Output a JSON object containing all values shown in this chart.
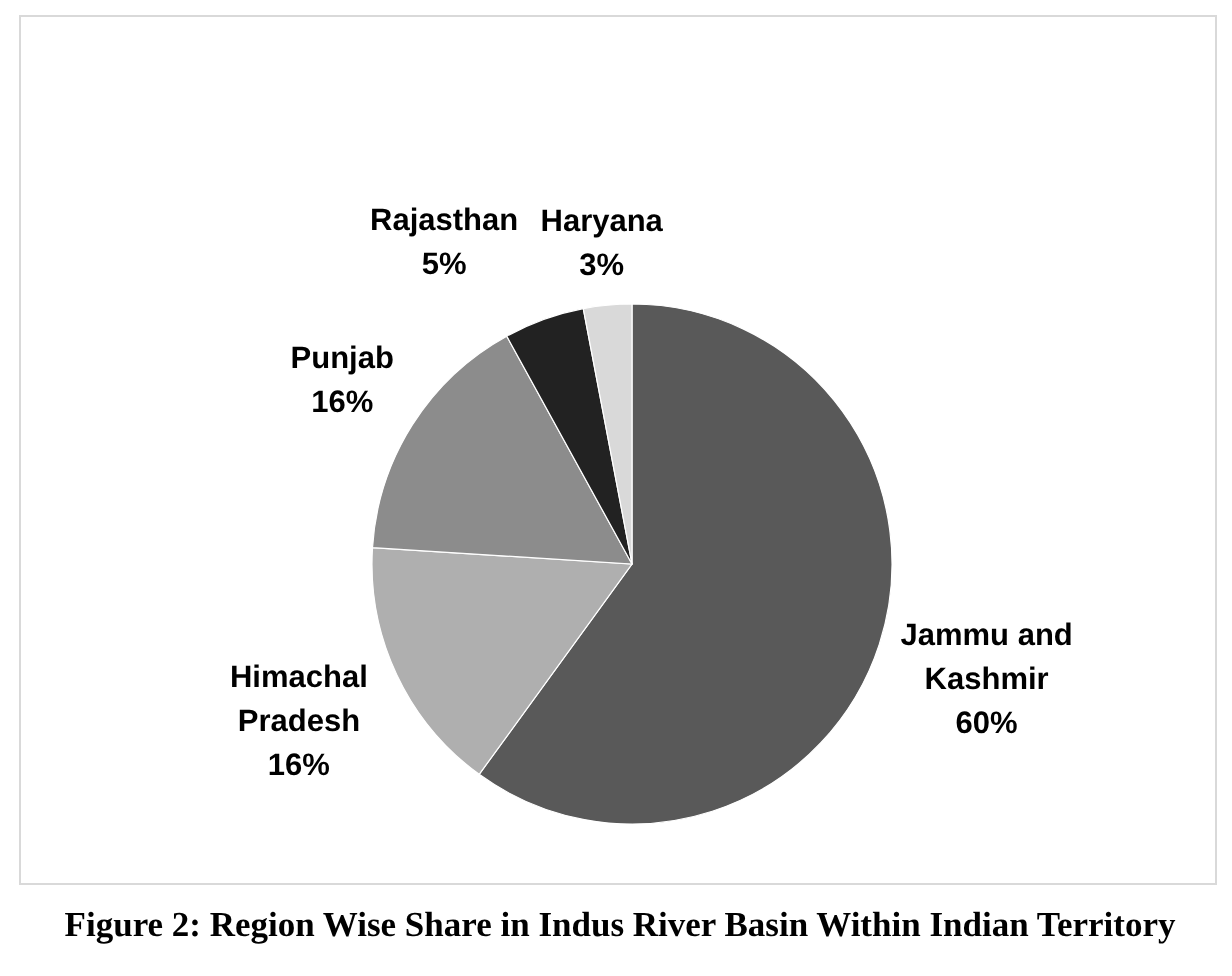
{
  "chart_data": {
    "type": "pie",
    "categories": [
      "Jammu and Kashmir",
      "Himachal Pradesh",
      "Punjab",
      "Rajasthan",
      "Haryana"
    ],
    "values": [
      60,
      16,
      16,
      5,
      3
    ],
    "colors": [
      "#595959",
      "#afafaf",
      "#8c8c8c",
      "#222222",
      "#d9d9d9"
    ],
    "value_labels": [
      "60%",
      "16%",
      "16%",
      "5%",
      "3%"
    ],
    "annotations": [
      "Figure 2: Region Wise Share in Indus River Basin Within Indian Territory"
    ]
  }
}
